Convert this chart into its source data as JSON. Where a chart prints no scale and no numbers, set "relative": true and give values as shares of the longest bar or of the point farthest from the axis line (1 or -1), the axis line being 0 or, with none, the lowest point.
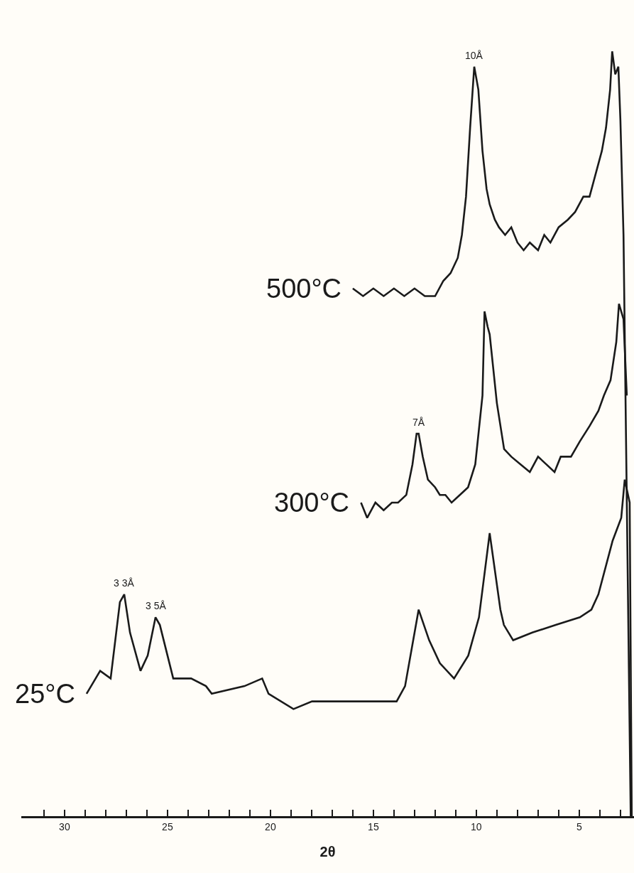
{
  "chart_data": {
    "type": "line",
    "relative": true,
    "xlabel": "2θ",
    "xlim": [
      32.1,
      2.34
    ],
    "xticks": [
      {
        "value": 31,
        "label": null
      },
      30,
      {
        "value": 29,
        "label": null
      },
      {
        "value": 28,
        "label": null
      },
      {
        "value": 27,
        "label": null
      },
      {
        "value": 26,
        "label": null
      },
      25,
      {
        "value": 24,
        "label": null
      },
      {
        "value": 23,
        "label": null
      },
      {
        "value": 22,
        "label": null
      },
      {
        "value": 21,
        "label": null
      },
      20,
      {
        "value": 19,
        "label": null
      },
      {
        "value": 18,
        "label": null
      },
      {
        "value": 17,
        "label": null
      },
      {
        "value": 16,
        "label": null
      },
      15,
      {
        "value": 14,
        "label": null
      },
      {
        "value": 13,
        "label": null
      },
      {
        "value": 12,
        "label": null
      },
      {
        "value": 11,
        "label": null
      },
      10,
      {
        "value": 9,
        "label": null
      },
      {
        "value": 8,
        "label": null
      },
      {
        "value": 7,
        "label": null
      },
      {
        "value": 6,
        "label": null
      },
      5,
      {
        "value": 4,
        "label": null
      },
      {
        "value": 3,
        "label": null
      }
    ],
    "tick_labels": "x",
    "grid": false,
    "legend": false,
    "marker": "none",
    "line_style": "solid",
    "series": [
      {
        "name": "500°C",
        "color": "#1a1a1a",
        "x": [
          16.0,
          15.5,
          15.0,
          14.5,
          14.0,
          13.5,
          13.0,
          12.5,
          12.0,
          11.6,
          11.25,
          10.9,
          10.7,
          10.5,
          10.3,
          10.1,
          9.9,
          9.7,
          9.5,
          9.35,
          9.1,
          8.9,
          8.6,
          8.3,
          8.0,
          7.7,
          7.4,
          7.0,
          6.7,
          6.4,
          6.0,
          5.55,
          5.2,
          4.8,
          4.5,
          4.2,
          3.9,
          3.7,
          3.5,
          3.4,
          3.25,
          3.1,
          3.0,
          2.85,
          2.5
        ],
        "values": [
          0.69,
          0.68,
          0.69,
          0.68,
          0.69,
          0.68,
          0.69,
          0.68,
          0.68,
          0.7,
          0.71,
          0.73,
          0.76,
          0.81,
          0.9,
          0.98,
          0.95,
          0.87,
          0.82,
          0.8,
          0.78,
          0.77,
          0.76,
          0.77,
          0.75,
          0.74,
          0.75,
          0.74,
          0.76,
          0.75,
          0.77,
          0.78,
          0.79,
          0.81,
          0.81,
          0.84,
          0.87,
          0.9,
          0.95,
          1.0,
          0.97,
          0.98,
          0.91,
          0.76,
          0.0
        ]
      },
      {
        "name": "300°C",
        "color": "#1a1a1a",
        "x": [
          15.6,
          15.3,
          14.9,
          14.5,
          14.1,
          13.8,
          13.4,
          13.1,
          12.9,
          12.8,
          12.6,
          12.35,
          12.0,
          11.77,
          11.5,
          11.2,
          10.8,
          10.4,
          10.05,
          9.7,
          9.6,
          9.45,
          9.35,
          9.0,
          8.65,
          8.3,
          7.85,
          7.4,
          7.0,
          6.6,
          6.2,
          5.9,
          5.4,
          4.97,
          4.5,
          4.07,
          3.8,
          3.48,
          3.2,
          3.07,
          2.96,
          2.85,
          2.69
        ],
        "values": [
          0.41,
          0.39,
          0.41,
          0.4,
          0.41,
          0.41,
          0.42,
          0.46,
          0.5,
          0.5,
          0.47,
          0.44,
          0.43,
          0.42,
          0.42,
          0.41,
          0.42,
          0.43,
          0.46,
          0.55,
          0.66,
          0.64,
          0.63,
          0.54,
          0.48,
          0.47,
          0.46,
          0.45,
          0.47,
          0.46,
          0.45,
          0.47,
          0.47,
          0.49,
          0.51,
          0.53,
          0.55,
          0.57,
          0.62,
          0.67,
          0.66,
          0.65,
          0.55
        ]
      },
      {
        "name": "25°C",
        "color": "#1a1a1a",
        "x": [
          28.93,
          28.27,
          27.76,
          27.31,
          27.1,
          26.82,
          26.31,
          25.96,
          25.58,
          25.37,
          24.72,
          23.85,
          23.13,
          22.85,
          21.26,
          20.4,
          20.09,
          18.88,
          17.98,
          17.15,
          15.91,
          14.67,
          13.87,
          13.46,
          12.8,
          12.29,
          11.77,
          11.08,
          10.39,
          9.87,
          9.35,
          8.83,
          8.66,
          8.21,
          7.28,
          6.14,
          4.97,
          4.41,
          4.07,
          3.38,
          2.96,
          2.79,
          2.55,
          2.45
        ],
        "values": [
          0.16,
          0.19,
          0.18,
          0.28,
          0.29,
          0.24,
          0.19,
          0.21,
          0.26,
          0.25,
          0.18,
          0.18,
          0.17,
          0.16,
          0.17,
          0.18,
          0.16,
          0.14,
          0.15,
          0.15,
          0.15,
          0.15,
          0.15,
          0.17,
          0.27,
          0.23,
          0.2,
          0.18,
          0.21,
          0.26,
          0.37,
          0.27,
          0.25,
          0.23,
          0.24,
          0.25,
          0.26,
          0.27,
          0.29,
          0.36,
          0.39,
          0.44,
          0.41,
          0.0
        ]
      }
    ],
    "annotations": [
      {
        "text": "10Å",
        "x": 10.1,
        "y": 0.98
      },
      {
        "text": "7Å",
        "x": 12.8,
        "y": 0.5
      },
      {
        "text": "3 3Å",
        "x": 27.1,
        "y": 0.29
      },
      {
        "text": "3 5Å",
        "x": 25.58,
        "y": 0.26
      }
    ]
  }
}
